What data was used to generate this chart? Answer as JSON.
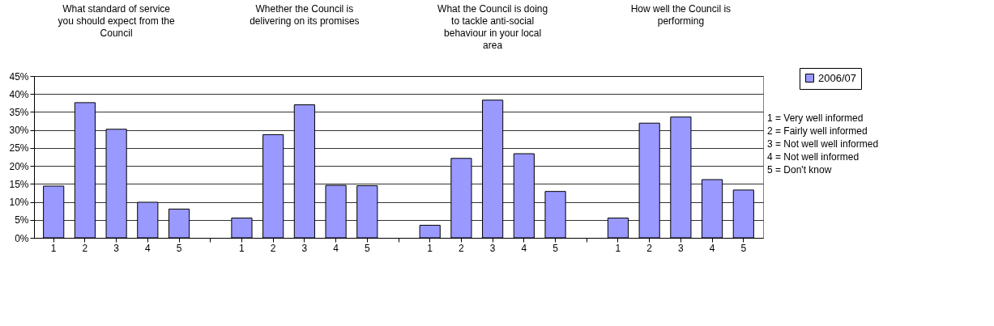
{
  "chart_data": {
    "type": "bar",
    "categories": [
      "1",
      "2",
      "3",
      "4",
      "5",
      null,
      "1",
      "2",
      "3",
      "4",
      "5",
      null,
      "1",
      "2",
      "3",
      "4",
      "5",
      null,
      "1",
      "2",
      "3",
      "4",
      "5"
    ],
    "series": [
      {
        "name": "2006/07",
        "color": "#9999ff",
        "values": [
          14.4,
          37.6,
          30.2,
          9.9,
          8.0,
          null,
          5.5,
          28.7,
          37.0,
          14.6,
          14.5,
          null,
          3.5,
          22.1,
          38.3,
          23.4,
          12.9,
          null,
          5.5,
          31.9,
          33.6,
          16.2,
          13.3
        ]
      }
    ],
    "ylim": [
      0,
      45
    ],
    "yticks": [
      {
        "value": 0,
        "label": "0%"
      },
      {
        "value": 5,
        "label": "5%"
      },
      {
        "value": 10,
        "label": "10%"
      },
      {
        "value": 15,
        "label": "15%"
      },
      {
        "value": 20,
        "label": "20%"
      },
      {
        "value": 25,
        "label": "25%"
      },
      {
        "value": 30,
        "label": "30%"
      },
      {
        "value": 35,
        "label": "35%"
      },
      {
        "value": 40,
        "label": "40%"
      },
      {
        "value": 45,
        "label": "45%"
      }
    ],
    "grid": "y",
    "legend": "top right",
    "annotations": [
      "What standard of service you should expect from the Council",
      "Whether the Council is delivering on its promises",
      "What the Council is doing to tackle anti-social behaviour in your local area",
      "How well the Council is performing",
      "1 = Very well informed",
      "2 = Fairly well informed",
      "3 = Not well well informed",
      "4 = Not well informed",
      "5 = Don't know"
    ]
  }
}
